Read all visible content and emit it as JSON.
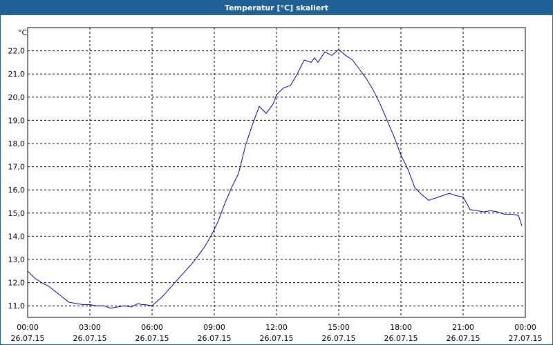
{
  "window": {
    "title": "Temperatur [°C] skaliert"
  },
  "colors": {
    "titlebar": "#1f6196",
    "line": "#0000cc",
    "grid": "#000000"
  },
  "chart_data": {
    "type": "line",
    "title": "Temperatur [°C] skaliert",
    "ylabel": "°C",
    "xlabel": "",
    "grid": true,
    "ylim": [
      10.5,
      23.0
    ],
    "y_ticks": [
      "22,0",
      "21,0",
      "20,0",
      "19,0",
      "18,0",
      "17,0",
      "16,0",
      "15,0",
      "14,0",
      "13,0",
      "12,0",
      "11,0"
    ],
    "x_ticks": [
      {
        "time": "00:00",
        "date": "26.07.15"
      },
      {
        "time": "03:00",
        "date": "26.07.15"
      },
      {
        "time": "06:00",
        "date": "26.07.15"
      },
      {
        "time": "09:00",
        "date": "26.07.15"
      },
      {
        "time": "12:00",
        "date": "26.07.15"
      },
      {
        "time": "15:00",
        "date": "26.07.15"
      },
      {
        "time": "18:00",
        "date": "26.07.15"
      },
      {
        "time": "21:00",
        "date": "26.07.15"
      },
      {
        "time": "00:00",
        "date": "27.07.15"
      }
    ],
    "series": [
      {
        "x": [
          "2015-07-26 00:00",
          "2015-07-26 00:20",
          "2015-07-26 00:40",
          "2015-07-26 01:00",
          "2015-07-26 01:30",
          "2015-07-26 02:00",
          "2015-07-26 02:20",
          "2015-07-26 02:40",
          "2015-07-26 03:00",
          "2015-07-26 03:20",
          "2015-07-26 03:40",
          "2015-07-26 04:00",
          "2015-07-26 04:20",
          "2015-07-26 04:40",
          "2015-07-26 05:00",
          "2015-07-26 05:20",
          "2015-07-26 05:30",
          "2015-07-26 05:40",
          "2015-07-26 06:00",
          "2015-07-26 06:30",
          "2015-07-26 07:00",
          "2015-07-26 07:30",
          "2015-07-26 08:00",
          "2015-07-26 08:30",
          "2015-07-26 08:50",
          "2015-07-26 09:10",
          "2015-07-26 09:30",
          "2015-07-26 09:50",
          "2015-07-26 10:10",
          "2015-07-26 10:30",
          "2015-07-26 10:50",
          "2015-07-26 11:10",
          "2015-07-26 11:30",
          "2015-07-26 11:50",
          "2015-07-26 12:00",
          "2015-07-26 12:20",
          "2015-07-26 12:40",
          "2015-07-26 13:00",
          "2015-07-26 13:20",
          "2015-07-26 13:40",
          "2015-07-26 13:50",
          "2015-07-26 14:00",
          "2015-07-26 14:20",
          "2015-07-26 14:40",
          "2015-07-26 15:00",
          "2015-07-26 15:20",
          "2015-07-26 15:40",
          "2015-07-26 16:00",
          "2015-07-26 16:20",
          "2015-07-26 16:40",
          "2015-07-26 17:00",
          "2015-07-26 17:20",
          "2015-07-26 17:40",
          "2015-07-26 18:00",
          "2015-07-26 18:20",
          "2015-07-26 18:40",
          "2015-07-26 19:00",
          "2015-07-26 19:20",
          "2015-07-26 19:40",
          "2015-07-26 20:00",
          "2015-07-26 20:20",
          "2015-07-26 20:40",
          "2015-07-26 21:00",
          "2015-07-26 21:20",
          "2015-07-26 21:40",
          "2015-07-26 22:00",
          "2015-07-26 22:20",
          "2015-07-26 22:40",
          "2015-07-26 23:00",
          "2015-07-26 23:20",
          "2015-07-26 23:40",
          "2015-07-26 23:50"
        ],
        "y": [
          12.5,
          12.2,
          12.0,
          11.85,
          11.5,
          11.15,
          11.1,
          11.05,
          11.05,
          11.0,
          11.0,
          10.9,
          10.95,
          11.0,
          10.95,
          11.1,
          11.05,
          11.05,
          11.0,
          11.4,
          11.9,
          12.4,
          12.9,
          13.5,
          14.0,
          14.6,
          15.4,
          16.1,
          16.7,
          17.9,
          18.8,
          19.6,
          19.3,
          19.7,
          20.1,
          20.4,
          20.5,
          21.0,
          21.6,
          21.5,
          21.7,
          21.5,
          21.95,
          21.8,
          22.05,
          21.8,
          21.6,
          21.2,
          20.8,
          20.3,
          19.7,
          19.0,
          18.3,
          17.5,
          16.9,
          16.1,
          15.8,
          15.55,
          15.65,
          15.75,
          15.85,
          15.75,
          15.7,
          15.15,
          15.1,
          15.05,
          15.1,
          15.05,
          14.95,
          14.95,
          14.9,
          14.45
        ]
      }
    ]
  }
}
